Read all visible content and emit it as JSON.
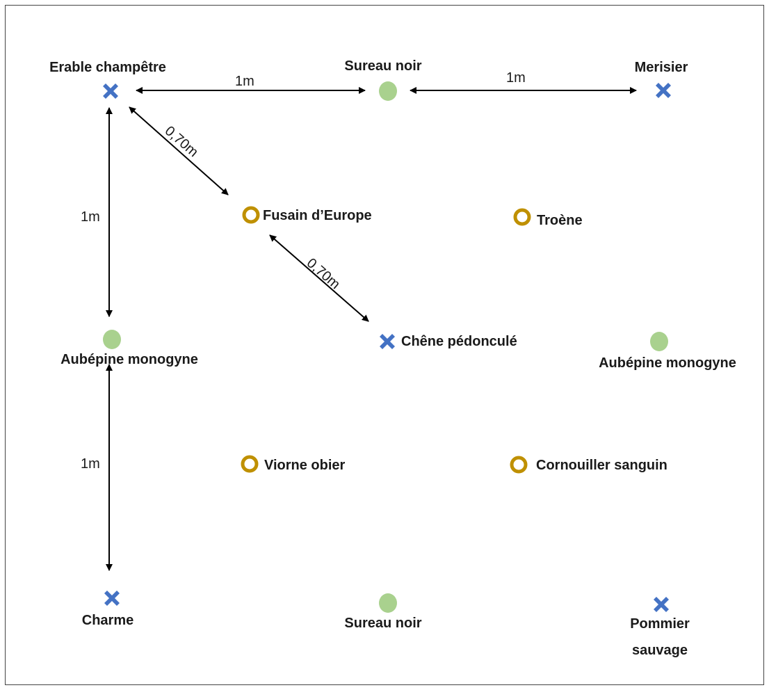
{
  "legend_colors": {
    "cross": "#4472c4",
    "dot": "#a9d18e",
    "ring": "#bf9000",
    "arrow": "#000000"
  },
  "plants": [
    {
      "label": "Erable champêtre",
      "marker": "cross-icon"
    },
    {
      "label": "Sureau noir",
      "marker": "dot-icon"
    },
    {
      "label": "Merisier",
      "marker": "cross-icon"
    },
    {
      "label": "Fusain d’Europe",
      "marker": "ring-icon"
    },
    {
      "label": "Troène",
      "marker": "ring-icon"
    },
    {
      "label": "Aubépine monogyne",
      "marker": "dot-icon"
    },
    {
      "label": "Chêne pédonculé",
      "marker": "cross-icon"
    },
    {
      "label": "Aubépine monogyne",
      "marker": "dot-icon"
    },
    {
      "label": "Viorne obier",
      "marker": "ring-icon"
    },
    {
      "label": "Cornouiller sanguin",
      "marker": "ring-icon"
    },
    {
      "label": "Charme",
      "marker": "cross-icon"
    },
    {
      "label": "Sureau noir",
      "marker": "dot-icon"
    },
    {
      "label_lines": [
        "Pommier",
        "sauvage"
      ],
      "marker": "cross-icon"
    }
  ],
  "distances": {
    "top_left": "1m",
    "top_right": "1m",
    "diag_upper": "0,70m",
    "diag_lower": "0,70m",
    "left_upper": "1m",
    "left_lower": "1m"
  }
}
